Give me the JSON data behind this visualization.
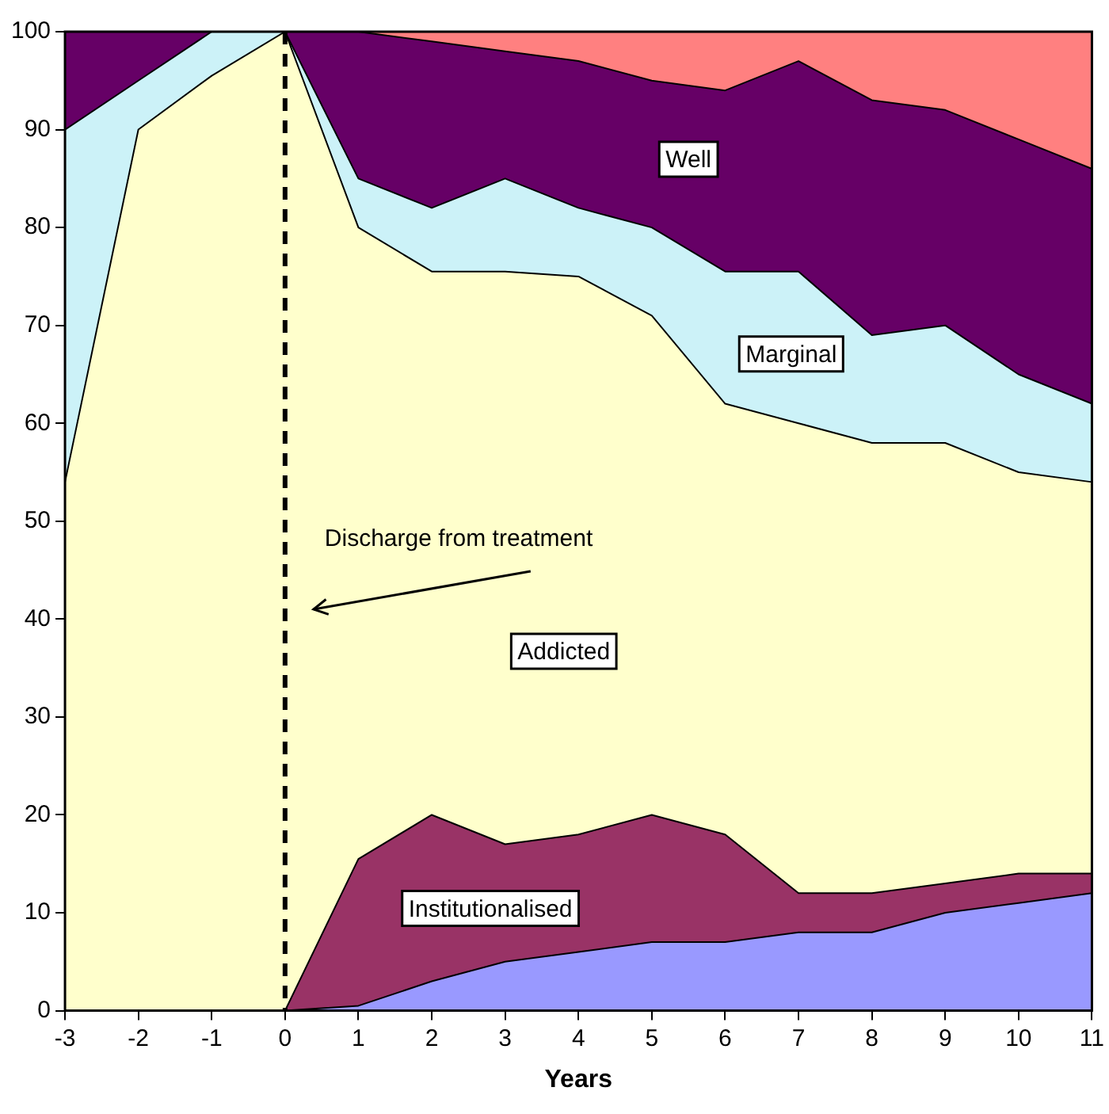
{
  "chart_data": {
    "type": "area",
    "stacked": true,
    "xlabel": "Years",
    "x": [
      -3,
      -2,
      -1,
      0,
      1,
      2,
      3,
      4,
      5,
      6,
      7,
      8,
      9,
      10,
      11
    ],
    "xlim": [
      -3,
      11
    ],
    "xticks": [
      -3,
      -2,
      -1,
      0,
      1,
      2,
      3,
      4,
      5,
      6,
      7,
      8,
      9,
      10,
      11
    ],
    "ylim": [
      0,
      100
    ],
    "yticks": [
      0,
      10,
      20,
      30,
      40,
      50,
      60,
      70,
      80,
      90,
      100
    ],
    "legend": false,
    "series": [
      {
        "color": "#9999ff",
        "values": [
          0,
          0,
          0,
          0,
          0.5,
          3,
          5,
          6,
          7,
          7,
          8,
          8,
          10,
          11,
          12
        ]
      },
      {
        "name": "Institutionalised",
        "color": "#993366",
        "values": [
          0,
          0,
          0,
          0,
          15,
          17,
          12,
          12,
          13,
          11,
          4,
          4,
          3,
          3,
          2
        ]
      },
      {
        "name": "Addicted",
        "color": "#ffffcc",
        "values": [
          54,
          90,
          95.5,
          100,
          64.5,
          55.5,
          58.5,
          57,
          51,
          44,
          48,
          46,
          45,
          41,
          40
        ]
      },
      {
        "name": "Marginal",
        "color": "#ccf2f8",
        "values": [
          36,
          5,
          4.5,
          0,
          5,
          6.5,
          9.5,
          7,
          9,
          13.5,
          15.5,
          11,
          12,
          10,
          8
        ]
      },
      {
        "name": "Well",
        "color": "#660066",
        "values": [
          10,
          5,
          0,
          0,
          15,
          17,
          13,
          15,
          15,
          18.5,
          21.5,
          24,
          22,
          24,
          24
        ]
      },
      {
        "color": "#ff8080",
        "values": [
          0,
          0,
          0,
          0,
          0,
          1,
          2,
          3,
          5,
          6,
          3,
          7,
          8,
          11,
          14
        ]
      }
    ],
    "ref_lines": [
      {
        "axis": "x",
        "value": 0,
        "color": "#000000",
        "line_style": "dashed"
      }
    ],
    "annotations": [
      {
        "text": "Discharge from treatment",
        "x": 0,
        "y": 41
      }
    ]
  }
}
